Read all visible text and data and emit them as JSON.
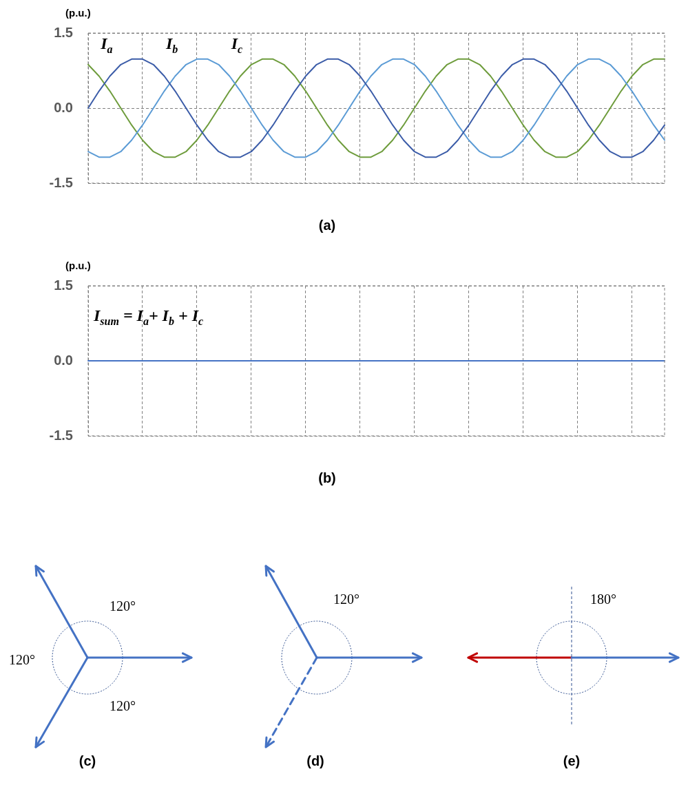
{
  "chart_data": [
    {
      "type": "line",
      "title": "(a)",
      "ylabel": "(p.u.)",
      "categories": [
        null,
        null,
        null,
        null,
        null,
        null,
        null,
        null,
        null,
        null,
        null,
        null,
        null,
        null,
        null,
        null,
        null,
        null,
        null,
        null,
        null,
        null,
        null,
        null,
        null,
        null,
        null,
        null,
        null,
        null,
        null,
        null,
        null,
        null,
        null,
        null,
        null,
        null,
        null,
        null,
        null,
        null,
        null,
        null,
        null,
        null,
        null,
        null,
        null,
        null,
        null,
        null,
        null,
        null
      ],
      "series": [
        {
          "name": "I$_{a}$",
          "color": "#3b5ca8",
          "values": [
            0,
            0.34,
            0.64,
            0.87,
            0.98,
            0.98,
            0.87,
            0.64,
            0.34,
            0,
            -0.34,
            -0.64,
            -0.87,
            -0.98,
            -0.98,
            -0.87,
            -0.64,
            -0.34,
            0,
            0.34,
            0.64,
            0.87,
            0.98,
            0.98,
            0.87,
            0.64,
            0.34,
            0,
            -0.34,
            -0.64,
            -0.87,
            -0.98,
            -0.98,
            -0.87,
            -0.64,
            -0.34,
            0,
            0.34,
            0.64,
            0.87,
            0.98,
            0.98,
            0.87,
            0.64,
            0.34,
            0,
            -0.34,
            -0.64,
            -0.87,
            -0.98,
            -0.98,
            -0.87,
            -0.64,
            -0.34
          ]
        },
        {
          "name": "I$_{b}$",
          "color": "#5b9bd5",
          "values": [
            -0.87,
            -0.98,
            -0.98,
            -0.87,
            -0.64,
            -0.34,
            0,
            0.34,
            0.64,
            0.87,
            0.98,
            0.98,
            0.87,
            0.64,
            0.34,
            0,
            -0.34,
            -0.64,
            -0.87,
            -0.98,
            -0.98,
            -0.87,
            -0.64,
            -0.34,
            0,
            0.34,
            0.64,
            0.87,
            0.98,
            0.98,
            0.87,
            0.64,
            0.34,
            0,
            -0.34,
            -0.64,
            -0.87,
            -0.98,
            -0.98,
            -0.87,
            -0.64,
            -0.34,
            0,
            0.34,
            0.64,
            0.87,
            0.98,
            0.98,
            0.87,
            0.64,
            0.34,
            0,
            -0.34,
            -0.64
          ]
        },
        {
          "name": "I$_{c}$",
          "color": "#6e9c3c",
          "values": [
            0.87,
            0.64,
            0.34,
            0,
            -0.34,
            -0.64,
            -0.87,
            -0.98,
            -0.98,
            -0.87,
            -0.64,
            -0.34,
            0,
            0.34,
            0.64,
            0.87,
            0.98,
            0.98,
            0.87,
            0.64,
            0.34,
            0,
            -0.34,
            -0.64,
            -0.87,
            -0.98,
            -0.98,
            -0.87,
            -0.64,
            -0.34,
            0,
            0.34,
            0.64,
            0.87,
            0.98,
            0.98,
            0.87,
            0.64,
            0.34,
            0,
            -0.34,
            -0.64,
            -0.87,
            -0.98,
            -0.98,
            -0.87,
            -0.64,
            -0.34,
            0,
            0.34,
            0.64,
            0.87,
            0.98,
            0.98
          ]
        }
      ],
      "ylim": [
        -1.5,
        1.5
      ],
      "yticks": [
        {
          "value": -1.5,
          "label": "-1.5"
        },
        {
          "value": 0,
          "label": "0.0"
        },
        {
          "value": 1.5,
          "label": "1.5"
        }
      ],
      "grid": true,
      "tick_labels": "y"
    },
    {
      "type": "line",
      "title": "(b)",
      "ylabel": "(p.u.)",
      "annotations": [
        "I$_{sum}$ = I$_{a}$+ I$_{b}$ + I$_{c}$"
      ],
      "categories": [
        null,
        null,
        null,
        null,
        null,
        null,
        null,
        null,
        null,
        null,
        null,
        null,
        null,
        null,
        null,
        null,
        null,
        null,
        null,
        null,
        null,
        null,
        null,
        null,
        null,
        null,
        null,
        null,
        null,
        null,
        null,
        null,
        null,
        null,
        null,
        null,
        null,
        null,
        null,
        null,
        null,
        null,
        null,
        null,
        null,
        null,
        null,
        null,
        null,
        null,
        null,
        null,
        null,
        null
      ],
      "series": [
        {
          "color": "#4472c4",
          "values": [
            0,
            0,
            0,
            0,
            0,
            0,
            0,
            0,
            0,
            0,
            0,
            0,
            0,
            0,
            0,
            0,
            0,
            0,
            0,
            0,
            0,
            0,
            0,
            0,
            0,
            0,
            0,
            0,
            0,
            0,
            0,
            0,
            0,
            0,
            0,
            0,
            0,
            0,
            0,
            0,
            0,
            0,
            0,
            0,
            0,
            0,
            0,
            0,
            0,
            0,
            0,
            0,
            0,
            0
          ]
        }
      ],
      "ylim": [
        -1.5,
        1.5
      ],
      "yticks": [
        {
          "value": -1.5,
          "label": "-1.5"
        },
        {
          "value": 0,
          "label": "0.0"
        },
        {
          "value": 1.5,
          "label": "1.5"
        }
      ],
      "grid": true,
      "tick_labels": "y"
    },
    {
      "type": "other",
      "annotations": [
        "120°",
        "120°",
        "120°",
        "(c)",
        "120°",
        "(d)",
        "180°",
        "(e)"
      ]
    }
  ]
}
